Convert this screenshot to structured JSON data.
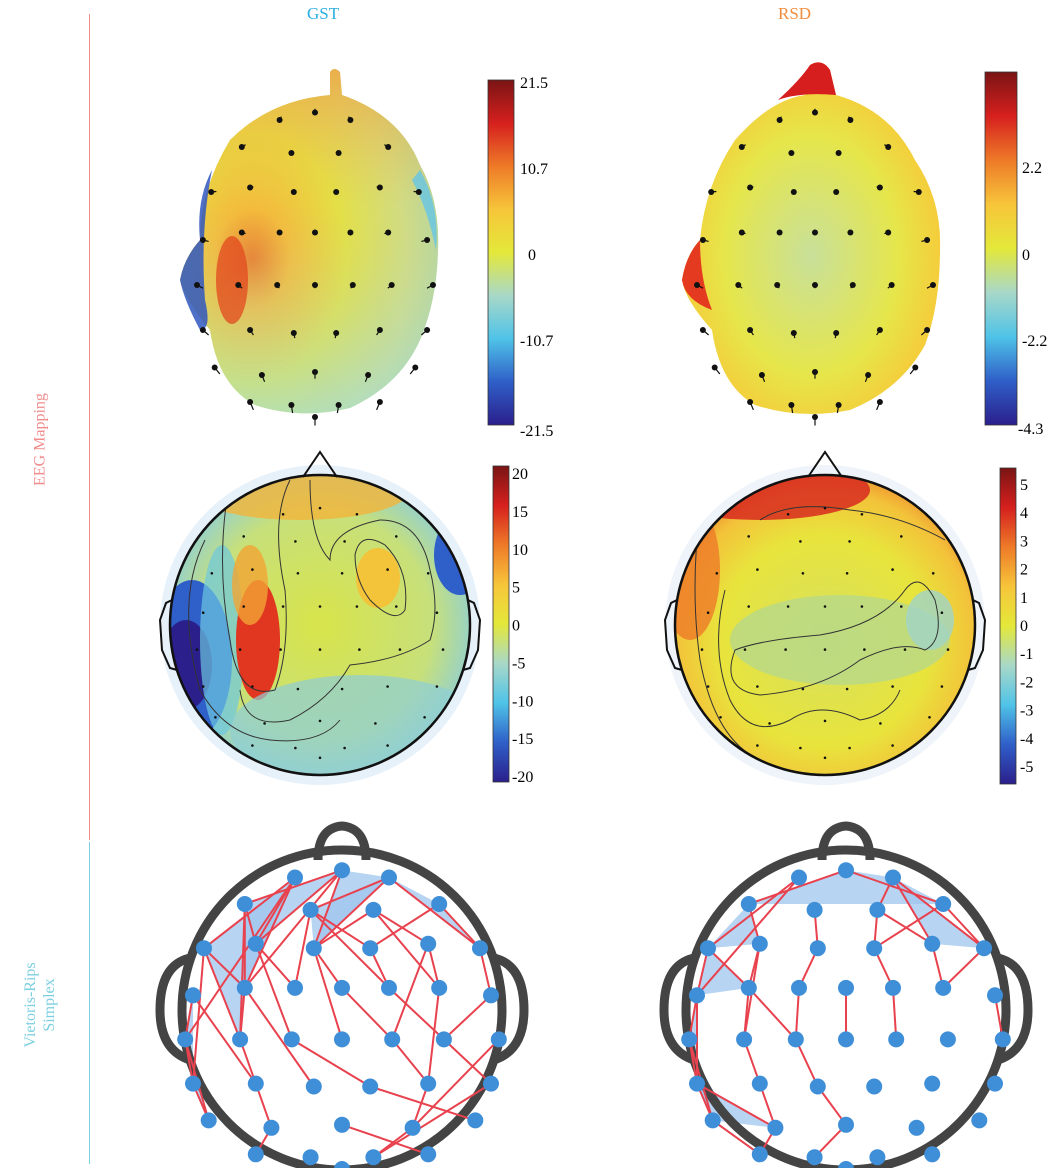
{
  "columns": [
    {
      "title": "GST",
      "color": "#2aaee0"
    },
    {
      "title": "RSD",
      "color": "#f08c3c"
    }
  ],
  "rows": [
    {
      "label": "EEG Mapping",
      "color": "#f08c8c"
    },
    {
      "label_lines": [
        "Vietoris-Rips",
        "Simplex"
      ],
      "color": "#7ccfe0"
    }
  ],
  "colorbars": {
    "gst_3d": {
      "ticks": [
        "21.5",
        "10.7",
        "0",
        "-10.7",
        "-21.5"
      ]
    },
    "rsd_3d": {
      "ticks": [
        "2.2",
        "0",
        "-2.2",
        "-4.3"
      ]
    },
    "gst_topo": {
      "ticks": [
        "20",
        "15",
        "10",
        "5",
        "0",
        "-5",
        "-10",
        "-15",
        "-20"
      ]
    },
    "rsd_topo": {
      "ticks": [
        "5",
        "4",
        "3",
        "2",
        "1",
        "0",
        "-1",
        "-2",
        "-3",
        "-4",
        "-5"
      ]
    }
  },
  "colors": {
    "colormap": [
      "#2b1f8c",
      "#2f5fc8",
      "#4fc3e8",
      "#a8d8c8",
      "#e4e83a",
      "#f7c53a",
      "#ee7a28",
      "#d6201e",
      "#7a1414"
    ],
    "node": "#3f8fd8",
    "edge": "#e8424e",
    "simplex_fill": "#9fc6ee",
    "head_outline": "#444444"
  }
}
